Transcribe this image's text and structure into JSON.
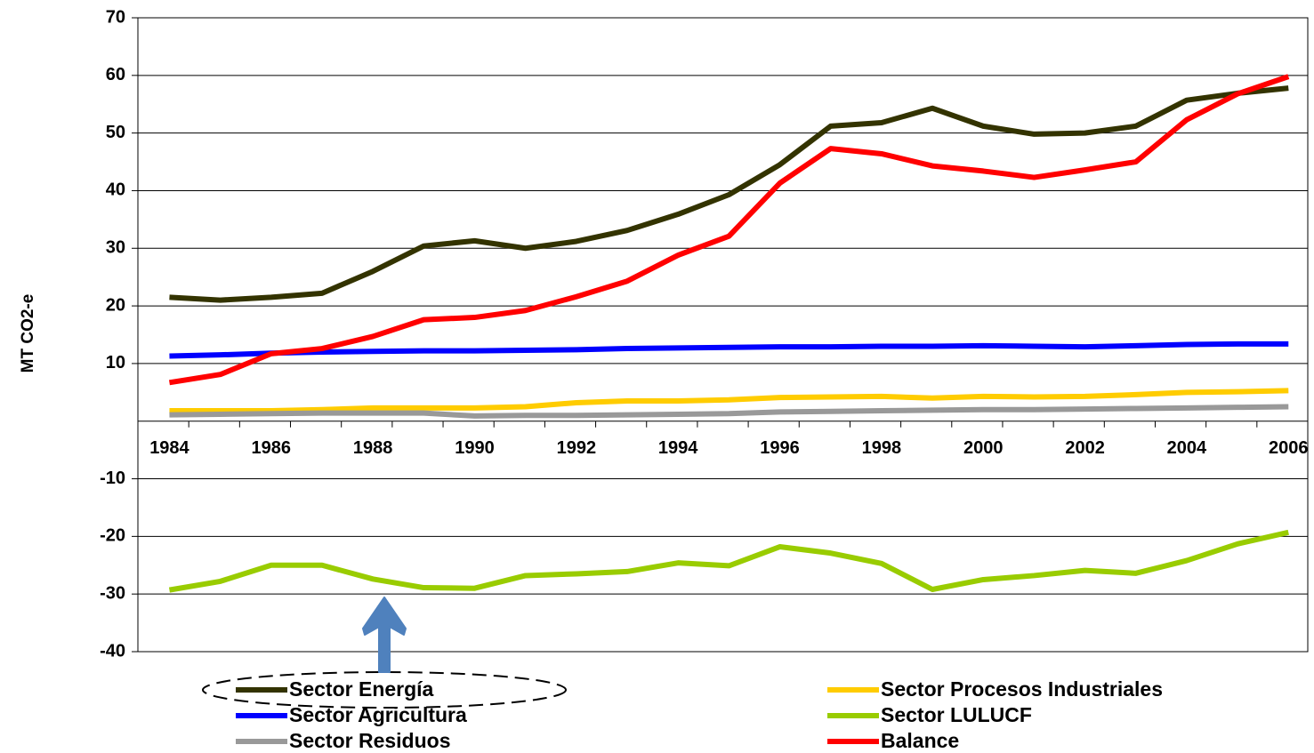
{
  "chart_data": {
    "type": "line",
    "y_label": "MT CO2-e",
    "categories": [
      "1984",
      null,
      "1986",
      null,
      "1988",
      null,
      "1990",
      null,
      "1992",
      null,
      "1994",
      null,
      "1996",
      null,
      "1998",
      null,
      "2000",
      null,
      "2002",
      null,
      "2004",
      null,
      "2006"
    ],
    "series": [
      {
        "name": "Sector Energía",
        "color": "#333300",
        "values": [
          21.5,
          21.0,
          21.5,
          22.2,
          26.0,
          30.4,
          31.3,
          30.0,
          31.2,
          33.1,
          35.9,
          39.3,
          44.5,
          51.2,
          51.8,
          54.3,
          51.2,
          49.8,
          50.0,
          51.2,
          55.7,
          56.9,
          57.8
        ]
      },
      {
        "name": "Sector Procesos Industriales",
        "color": "#ffcc00",
        "values": [
          1.8,
          1.8,
          1.8,
          2.0,
          2.3,
          2.3,
          2.3,
          2.5,
          3.2,
          3.5,
          3.5,
          3.7,
          4.1,
          4.2,
          4.3,
          4.0,
          4.3,
          4.2,
          4.3,
          4.6,
          5.0,
          5.1,
          5.3
        ]
      },
      {
        "name": "Sector Agricultura",
        "color": "#0000ff",
        "values": [
          11.3,
          11.5,
          11.8,
          12.0,
          12.1,
          12.2,
          12.2,
          12.3,
          12.4,
          12.6,
          12.7,
          12.8,
          12.9,
          12.9,
          13.0,
          13.0,
          13.1,
          13.0,
          12.9,
          13.1,
          13.3,
          13.4,
          13.4
        ]
      },
      {
        "name": "Sector LULUCF",
        "color": "#99cc00",
        "values": [
          -29.3,
          -27.8,
          -25.0,
          -25.0,
          -27.4,
          -28.9,
          -29.0,
          -26.8,
          -26.5,
          -26.1,
          -24.6,
          -25.1,
          -21.8,
          -22.9,
          -24.7,
          -29.2,
          -27.5,
          -26.8,
          -25.9,
          -26.4,
          -24.2,
          -21.3,
          -19.3
        ]
      },
      {
        "name": "Sector Residuos",
        "color": "#999999",
        "values": [
          1.1,
          1.2,
          1.3,
          1.4,
          1.4,
          1.4,
          0.9,
          1.0,
          1.0,
          1.1,
          1.2,
          1.3,
          1.6,
          1.7,
          1.8,
          1.9,
          2.0,
          2.0,
          2.1,
          2.2,
          2.3,
          2.4,
          2.5
        ]
      },
      {
        "name": "Balance",
        "color": "#ff0000",
        "values": [
          6.7,
          8.1,
          11.7,
          12.6,
          14.7,
          17.6,
          18.0,
          19.2,
          21.6,
          24.3,
          28.8,
          32.1,
          41.3,
          47.3,
          46.4,
          44.3,
          43.4,
          42.3,
          43.6,
          45.0,
          52.3,
          56.8,
          59.8
        ]
      }
    ],
    "ylim": [
      -40,
      70
    ],
    "yticks": [
      -40,
      -30,
      -20,
      -10,
      10,
      20,
      30,
      40,
      50,
      60,
      70
    ],
    "grid": true,
    "legend": "bottom"
  }
}
